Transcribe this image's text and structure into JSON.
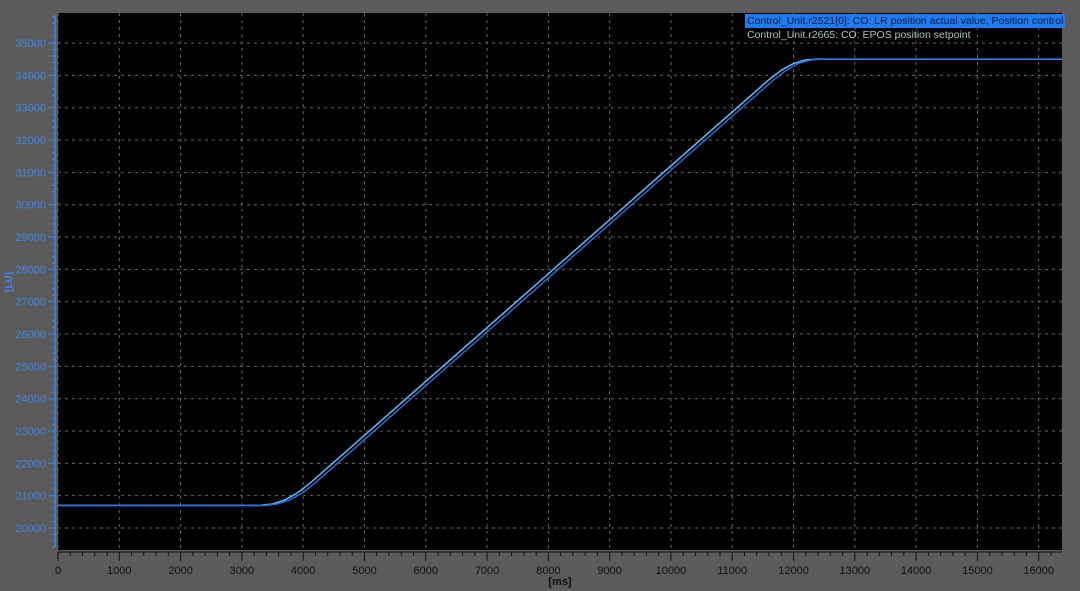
{
  "chart_data": {
    "type": "line",
    "xlabel": "[ms]",
    "ylabel": "[LU]",
    "xlim": [
      0,
      16380
    ],
    "ylim": [
      19320,
      35930
    ],
    "xticks": [
      0,
      1000,
      2000,
      3000,
      4000,
      5000,
      6000,
      7000,
      8000,
      9000,
      10000,
      11000,
      12000,
      13000,
      14000,
      15000,
      16000
    ],
    "yticks": [
      20000,
      21000,
      22000,
      23000,
      24000,
      25000,
      26000,
      27000,
      28000,
      29000,
      30000,
      31000,
      32000,
      33000,
      34000,
      35000
    ],
    "grid": true,
    "legend_position": "top-right",
    "series": [
      {
        "name": "Control_Unit.r2521[0]: CO: LR position actual value, Position control",
        "color": "#2a6ee0",
        "selected": true,
        "x": [
          0,
          3380,
          3580,
          3780,
          3980,
          4180,
          5080,
          6080,
          7080,
          8080,
          9080,
          10080,
          11080,
          11680,
          11880,
          12080,
          12280,
          12480,
          16380
        ],
        "y": [
          20700,
          20700,
          20742,
          20867,
          21075,
          21367,
          22867,
          24534,
          26200,
          27867,
          29534,
          31200,
          32867,
          33867,
          34158,
          34367,
          34480,
          34500,
          34500
        ]
      },
      {
        "name": "Control_Unit.r2665: CO: EPOS position setpoint",
        "color": "#62b4e8",
        "x": [
          0,
          3300,
          3500,
          3700,
          3900,
          4100,
          5000,
          6000,
          7000,
          8000,
          9000,
          10000,
          11000,
          11600,
          11800,
          12000,
          12200,
          12400,
          16380
        ],
        "y": [
          20700,
          20700,
          20742,
          20867,
          21075,
          21367,
          22867,
          24534,
          26200,
          27867,
          29534,
          31200,
          32867,
          33867,
          34158,
          34367,
          34480,
          34500,
          34500
        ]
      }
    ]
  }
}
